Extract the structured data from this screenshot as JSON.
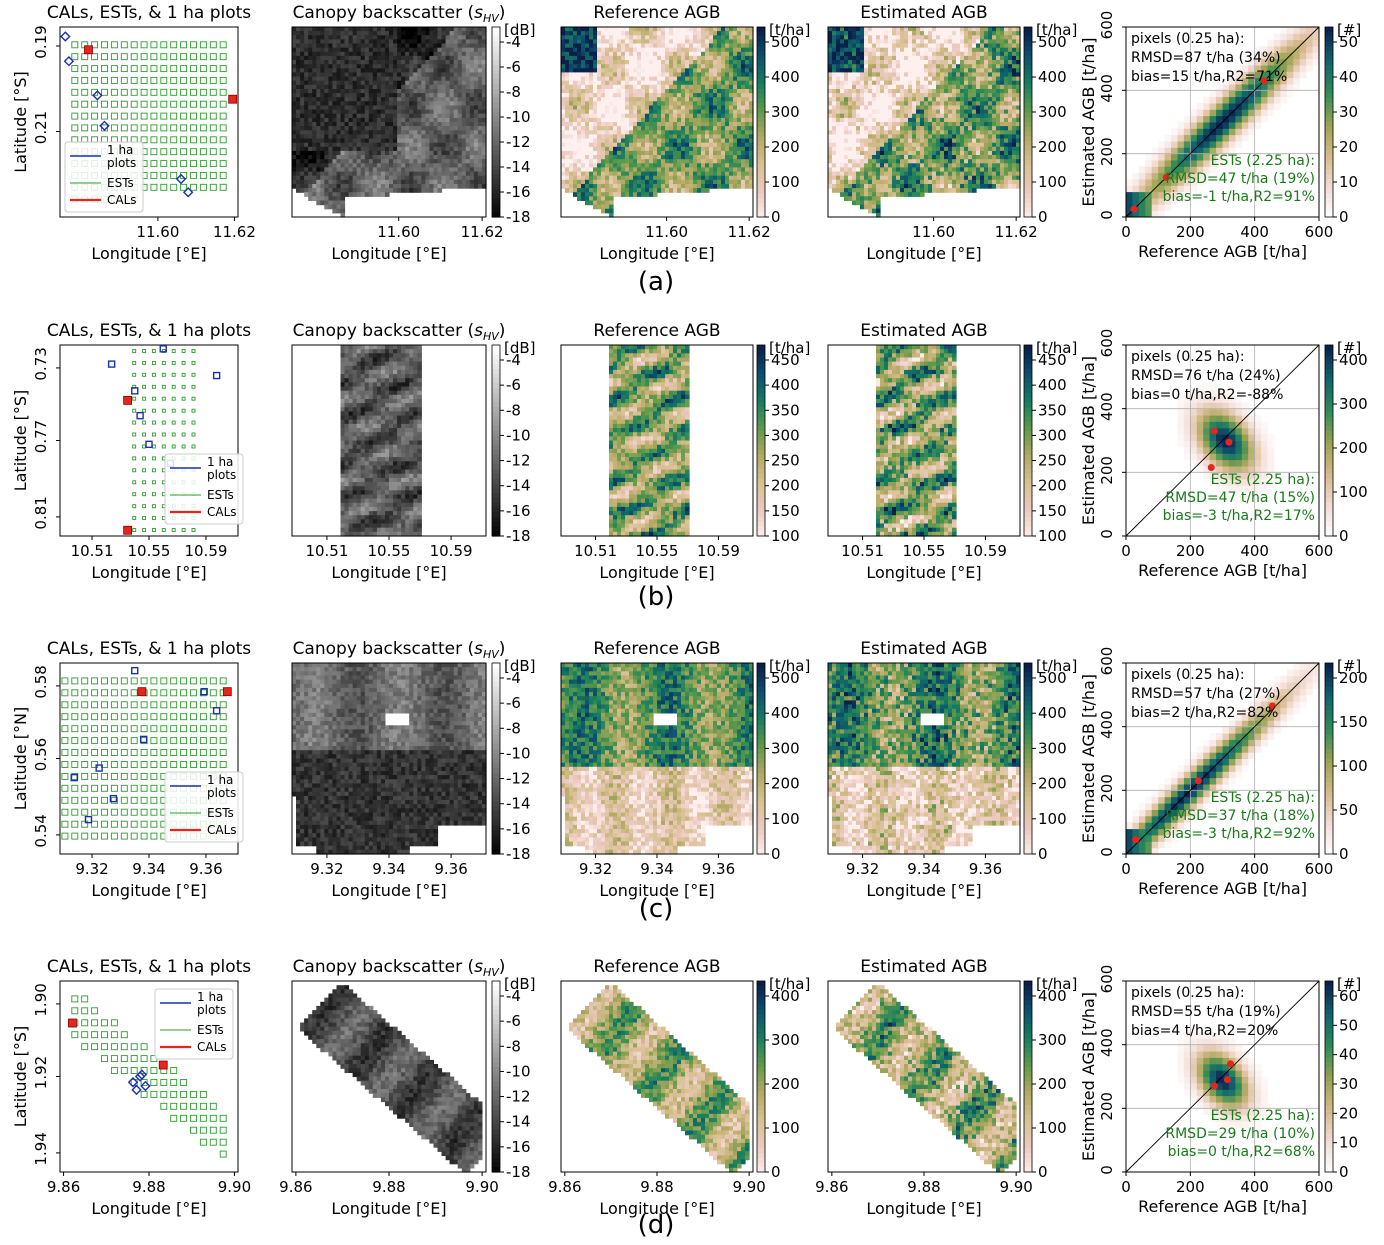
{
  "labels": {
    "t_cal": "CALs, ESTs, & 1 ha plots",
    "t_back_pre": "Canopy backscatter (",
    "t_back_s": "s",
    "t_back_sub": "HV",
    "t_back_post": ")",
    "t_ref": "Reference AGB",
    "t_est": "Estimated AGB",
    "xlab_lon": "Longitude [°E]",
    "xlab_ref": "Reference AGB [t/ha]",
    "ylab_est": "Estimated AGB [t/ha]",
    "unit_db": "[dB]",
    "unit_tha": "[t/ha]",
    "unit_n": "[#]",
    "legend": [
      "1 ha",
      "plots",
      "ESTs",
      "CALs"
    ]
  },
  "rows": [
    {
      "caption": "(a)",
      "ylabel": "Latitude [°S]",
      "lat_ticks": [
        "0.19",
        "0.21"
      ],
      "lon_ticks": [
        "11.60",
        "11.62"
      ],
      "db_ticks": [
        "-4",
        "-6",
        "-8",
        "-10",
        "-12",
        "-14",
        "-16",
        "-18"
      ],
      "agb_ticks": [
        "500",
        "400",
        "300",
        "200",
        "100",
        "0"
      ],
      "count_ticks": [
        "50",
        "40",
        "30",
        "20",
        "10",
        "0"
      ],
      "scatter_ticks": [
        "0",
        "200",
        "400",
        "600"
      ],
      "pixels": [
        "pixels (0.25 ha):",
        "RMSD=87 t/ha (34%)",
        "bias=15 t/ha,R2=71%"
      ],
      "ests": [
        "ESTs (2.25 ha):",
        "RMSD=47 t/ha (19%)",
        "bias=-1 t/ha,R2=91%"
      ]
    },
    {
      "caption": "(b)",
      "ylabel": "Latitude [°S]",
      "lat_ticks": [
        "0.73",
        "0.77",
        "0.81"
      ],
      "lon_ticks": [
        "10.51",
        "10.55",
        "10.59"
      ],
      "db_ticks": [
        "-4",
        "-6",
        "-8",
        "-10",
        "-12",
        "-14",
        "-16",
        "-18"
      ],
      "agb_ticks": [
        "450",
        "400",
        "350",
        "300",
        "250",
        "200",
        "150",
        "100"
      ],
      "count_ticks": [
        "400",
        "300",
        "200",
        "100",
        "0"
      ],
      "scatter_ticks": [
        "0",
        "200",
        "400",
        "600"
      ],
      "pixels": [
        "pixels (0.25 ha):",
        "RMSD=76 t/ha (24%)",
        "bias=0 t/ha,R2=-88%"
      ],
      "ests": [
        "ESTs (2.25 ha):",
        "RMSD=47 t/ha (15%)",
        "bias=-3 t/ha,R2=17%"
      ]
    },
    {
      "caption": "(c)",
      "ylabel": "Latitude [°N]",
      "lat_ticks": [
        "0.58",
        "0.56",
        "0.54"
      ],
      "lon_ticks": [
        "9.32",
        "9.34",
        "9.36"
      ],
      "db_ticks": [
        "-4",
        "-6",
        "-8",
        "-10",
        "-12",
        "-14",
        "-16",
        "-18"
      ],
      "agb_ticks": [
        "500",
        "400",
        "300",
        "200",
        "100",
        "0"
      ],
      "count_ticks": [
        "200",
        "150",
        "100",
        "50",
        "0"
      ],
      "scatter_ticks": [
        "0",
        "200",
        "400",
        "600"
      ],
      "pixels": [
        "pixels (0.25 ha):",
        "RMSD=57 t/ha (27%)",
        "bias=2 t/ha,R2=82%"
      ],
      "ests": [
        "ESTs (2.25 ha):",
        "RMSD=37 t/ha (18%)",
        "bias=-3 t/ha,R2=92%"
      ]
    },
    {
      "caption": "(d)",
      "ylabel": "Latitude [°S]",
      "lat_ticks": [
        "1.90",
        "1.92",
        "1.94"
      ],
      "lon_ticks": [
        "9.86",
        "9.88",
        "9.90"
      ],
      "db_ticks": [
        "-4",
        "-6",
        "-8",
        "-10",
        "-12",
        "-14",
        "-16",
        "-18"
      ],
      "agb_ticks": [
        "400",
        "300",
        "200",
        "100",
        "0"
      ],
      "count_ticks": [
        "60",
        "50",
        "40",
        "30",
        "20",
        "10",
        "0"
      ],
      "scatter_ticks": [
        "0",
        "200",
        "400",
        "600"
      ],
      "pixels": [
        "pixels (0.25 ha):",
        "RMSD=55 t/ha (19%)",
        "bias=4 t/ha,R2=20%"
      ],
      "ests": [
        "ESTs (2.25 ha):",
        "RMSD=29 t/ha (10%)",
        "bias=0 t/ha,R2=68%"
      ]
    }
  ],
  "chart_data": [
    {
      "type": "scatter",
      "panel": "a",
      "title": "",
      "xlabel": "Reference AGB [t/ha]",
      "ylabel": "Estimated AGB [t/ha]",
      "xlim": [
        0,
        600
      ],
      "ylim": [
        0,
        600
      ],
      "series": [
        {
          "name": "ESTs (2.25 ha)",
          "points": [
            [
              25,
              25
            ],
            [
              125,
              125
            ],
            [
              430,
              430
            ]
          ]
        }
      ],
      "color_scale": {
        "label": "[#]",
        "range": [
          0,
          58
        ]
      },
      "colors": {
        "hist_low": "#f6e6e0",
        "hist_mid": "#b3a864",
        "hist_high": "#0e2a5c",
        "est_points": "#e8251c"
      }
    },
    {
      "type": "scatter",
      "panel": "b",
      "title": "",
      "xlabel": "Reference AGB [t/ha]",
      "ylabel": "Estimated AGB [t/ha]",
      "xlim": [
        0,
        600
      ],
      "ylim": [
        0,
        600
      ],
      "series": [
        {
          "name": "ESTs (2.25 ha)",
          "points": [
            [
              275,
              330
            ],
            [
              265,
              215
            ],
            [
              320,
              295
            ]
          ]
        }
      ],
      "color_scale": {
        "label": "[#]",
        "range": [
          0,
          450
        ]
      }
    },
    {
      "type": "scatter",
      "panel": "c",
      "title": "",
      "xlabel": "Reference AGB [t/ha]",
      "ylabel": "Estimated AGB [t/ha]",
      "xlim": [
        0,
        600
      ],
      "ylim": [
        0,
        600
      ],
      "series": [
        {
          "name": "ESTs (2.25 ha)",
          "points": [
            [
              30,
              45
            ],
            [
              225,
              230
            ],
            [
              455,
              465
            ]
          ]
        }
      ],
      "color_scale": {
        "label": "[#]",
        "range": [
          0,
          230
        ]
      }
    },
    {
      "type": "scatter",
      "panel": "d",
      "title": "",
      "xlabel": "Reference AGB [t/ha]",
      "ylabel": "Estimated AGB [t/ha]",
      "xlim": [
        0,
        600
      ],
      "ylim": [
        0,
        600
      ],
      "series": [
        {
          "name": "ESTs (2.25 ha)",
          "points": [
            [
              275,
              270
            ],
            [
              315,
              290
            ],
            [
              325,
              340
            ]
          ]
        }
      ],
      "color_scale": {
        "label": "[#]",
        "range": [
          0,
          66
        ]
      }
    }
  ]
}
